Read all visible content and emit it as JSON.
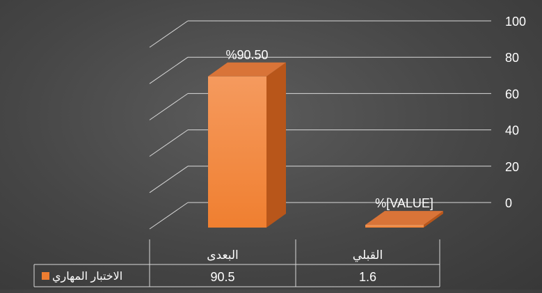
{
  "chart_data": {
    "type": "bar",
    "style": "3d-column",
    "title": "",
    "xlabel": "",
    "ylabel": "",
    "categories": [
      "البعدى",
      "القبلي"
    ],
    "series": [
      {
        "name": "الاختبار المهاري",
        "color": "#ed7d31",
        "values": [
          90.5,
          1.6
        ],
        "data_labels": [
          "%90.50",
          "%[VALUE]"
        ]
      }
    ],
    "ylim": [
      0,
      100
    ],
    "yticks": [
      0,
      20,
      40,
      60,
      80,
      100
    ],
    "y_axis_side": "right",
    "grid": true,
    "data_table": true,
    "legend_placement": "data-table-left"
  },
  "colors": {
    "gridline": "#d9d9d9",
    "text": "#ffffff",
    "bar_front_top": "#f59a5e",
    "bar_front_bottom": "#f07f30",
    "bar_side": "#b8561a",
    "bar_top": "#d97438"
  }
}
